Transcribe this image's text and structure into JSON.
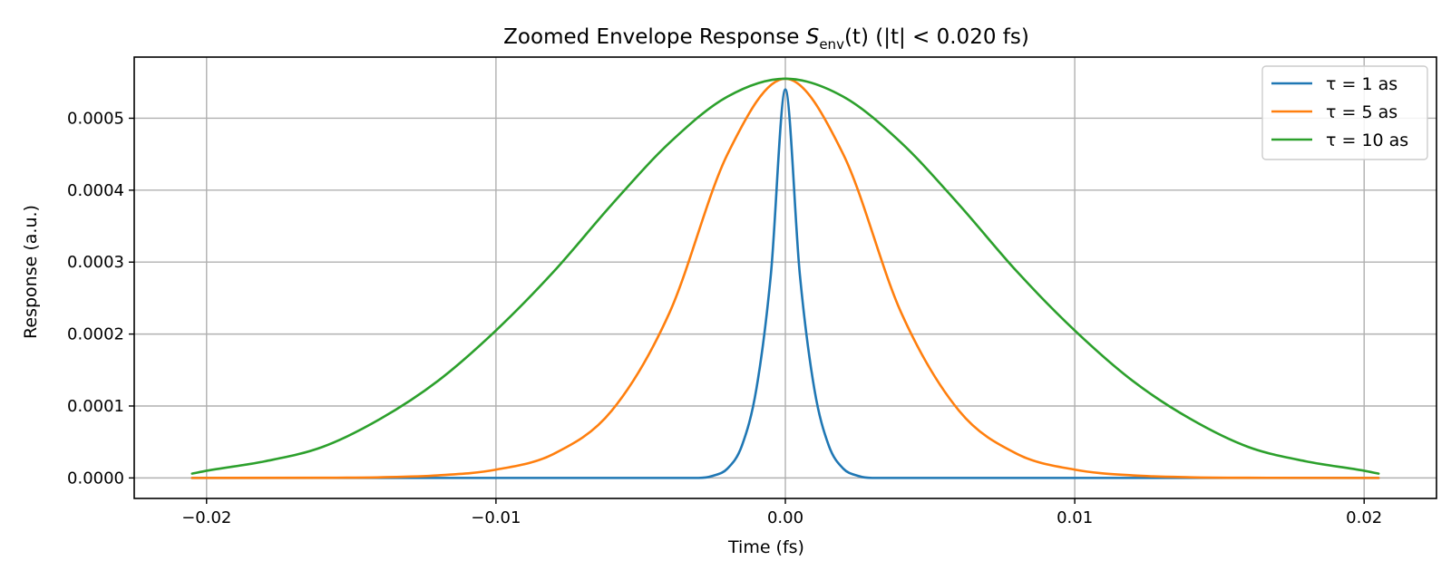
{
  "chart_data": {
    "type": "line",
    "title": "Zoomed Envelope Response S_env(t) (|t| < 0.020 fs)",
    "title_parts": {
      "prefix": "Zoomed Envelope Response ",
      "symbol": "S",
      "subscript": "env",
      "argument": "(t)",
      "suffix": " (|t| < 0.020 fs)"
    },
    "xlabel": "Time (fs)",
    "ylabel": "Response (a.u.)",
    "xlim": [
      -0.0225,
      0.0225
    ],
    "ylim": [
      -2.85e-05,
      0.000585
    ],
    "x_ticks": [
      -0.02,
      -0.01,
      0.0,
      0.01,
      0.02
    ],
    "x_tick_labels": [
      "−0.02",
      "−0.01",
      "0.00",
      "0.01",
      "0.02"
    ],
    "y_ticks": [
      0.0,
      0.0001,
      0.0002,
      0.0003,
      0.0004,
      0.0005
    ],
    "y_tick_labels": [
      "0.0000",
      "0.0001",
      "0.0002",
      "0.0003",
      "0.0004",
      "0.0005"
    ],
    "grid": true,
    "legend_position": "top-right",
    "x_range_shown": [
      -0.0205,
      0.0205
    ],
    "series": [
      {
        "name": "τ = 1 as",
        "color": "#1f77b4",
        "x": [
          -0.0205,
          -0.003,
          -0.0025,
          -0.002,
          -0.0015,
          -0.001,
          -0.0005,
          0.0,
          0.0005,
          0.001,
          0.0015,
          0.002,
          0.0025,
          0.003,
          0.0205
        ],
        "y": [
          0.0,
          0.0,
          3e-06,
          1.3e-05,
          4.5e-05,
          0.000124,
          0.000283,
          0.00054,
          0.000283,
          0.000124,
          4.5e-05,
          1.3e-05,
          3e-06,
          0.0,
          0.0
        ]
      },
      {
        "name": "τ = 5 as",
        "color": "#ff7f0e",
        "x": [
          -0.0205,
          -0.016,
          -0.014,
          -0.012,
          -0.01,
          -0.008,
          -0.006,
          -0.004,
          -0.002,
          0.0,
          0.002,
          0.004,
          0.006,
          0.008,
          0.01,
          0.012,
          0.014,
          0.016,
          0.0205
        ],
        "y": [
          0.0,
          2e-07,
          9e-07,
          3.5e-06,
          1.15e-05,
          3.35e-05,
          9.35e-05,
          0.00023,
          0.00045,
          0.000555,
          0.00045,
          0.00023,
          9.35e-05,
          3.35e-05,
          1.15e-05,
          3.5e-06,
          9e-07,
          2e-07,
          0.0
        ]
      },
      {
        "name": "τ = 10 as",
        "color": "#2ca02c",
        "x": [
          -0.0205,
          -0.02,
          -0.018,
          -0.016,
          -0.014,
          -0.012,
          -0.01,
          -0.008,
          -0.006,
          -0.004,
          -0.002,
          0.0,
          0.002,
          0.004,
          0.006,
          0.008,
          0.01,
          0.012,
          0.014,
          0.016,
          0.018,
          0.02,
          0.0205
        ],
        "y": [
          6e-06,
          1e-05,
          2.3e-05,
          4.3e-05,
          8.2e-05,
          0.000135,
          0.000205,
          0.000287,
          0.00038,
          0.000466,
          0.00053,
          0.000555,
          0.00053,
          0.000466,
          0.00038,
          0.000287,
          0.000205,
          0.000135,
          8.2e-05,
          4.3e-05,
          2.3e-05,
          1e-05,
          6e-06
        ]
      }
    ]
  }
}
